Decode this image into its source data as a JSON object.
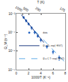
{
  "chart_data": {
    "type": "scatter",
    "x_label": "1000/T (K⁻¹)",
    "y_label": "Ω_M (s⁻¹)",
    "x2_label": "T (K)",
    "log": "y",
    "grid": false,
    "legend": "lower left",
    "xlim": [
      0,
      8
    ],
    "xticks": [
      0,
      2,
      4,
      6,
      8
    ],
    "x2ticks": [
      {
        "value": 1,
        "label": "1000"
      },
      {
        "value": 2,
        "label": "500"
      },
      {
        "value": 4,
        "label": "250"
      },
      {
        "value": 8,
        "label": "125"
      }
    ],
    "ylim": [
      1e-08,
      0.01
    ],
    "yticks": [
      {
        "value": 1e-08,
        "label": "10⁻⁸"
      },
      {
        "value": 1e-06,
        "label": "10⁻⁶"
      },
      {
        "value": 0.0001,
        "label": "10⁻⁴"
      },
      {
        "value": 0.01,
        "label": "10⁻²"
      }
    ],
    "series": [
      {
        "name": "data",
        "type": "scatter",
        "marker": "circle",
        "color": "#1f5fbf",
        "x": [
          1.2,
          1.6,
          2.0,
          2.5,
          3.0,
          3.5,
          4.0,
          5.0,
          6.0,
          7.0
        ],
        "values": [
          0.004,
          0.0018,
          0.0008,
          0.0003,
          0.0001,
          4e-05,
          1.5e-05,
          3e-06,
          8e-07,
          2e-07
        ],
        "errors": [
          0.001,
          0.0005,
          0.0002,
          0.0001,
          3e-05,
          1e-05,
          5e-06,
          1e-06,
          3e-07,
          1e-07
        ]
      },
      {
        "name": "Ω = Ω₀ exp(−E/kT)",
        "type": "line",
        "line_style": "solid",
        "color": "#12307a",
        "x": [
          0.8,
          4.5
        ],
        "values": [
          0.008,
          8e-06
        ]
      },
      {
        "name": "Ω = C T² exp(−E/kT)",
        "type": "line",
        "line_style": "dash",
        "color": "#5aa9e6",
        "x": [
          3.0,
          7.8
        ],
        "values": [
          0.00015,
          8e-08
        ]
      }
    ]
  }
}
